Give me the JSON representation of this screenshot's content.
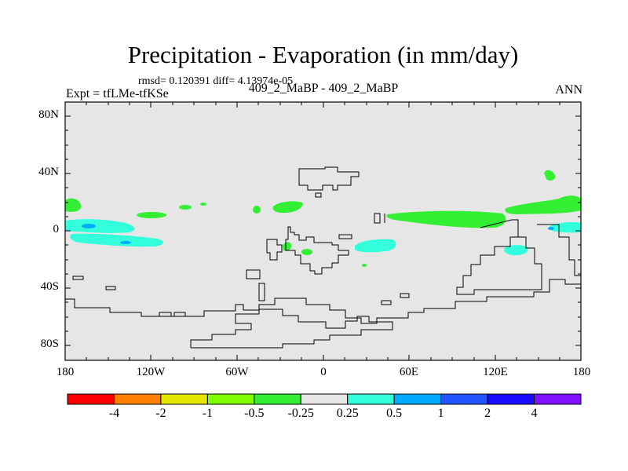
{
  "title": "Precipitation - Evaporation (in mm/day)",
  "subtitle": "rmsd= 0.120391 diff= 4.13974e-05",
  "left_label": "Expt = tfLMe-tfKSe",
  "center_label": "409_2_MaBP - 409_2_MaBP",
  "right_label": "ANN",
  "lat_ticks": [
    "80N",
    "40N",
    "0",
    "40S",
    "80S"
  ],
  "lon_ticks": [
    "180",
    "120W",
    "60W",
    "0",
    "60E",
    "120E",
    "180"
  ],
  "colorbar": {
    "labels": [
      "-4",
      "-2",
      "-1",
      "-0.5",
      "-0.25",
      "0.25",
      "0.5",
      "1",
      "2",
      "4"
    ],
    "colors": [
      "#ff0000",
      "#ff8000",
      "#e6e600",
      "#80ff00",
      "#33ee33",
      "#e6e6e6",
      "#33ffdd",
      "#00aaff",
      "#2255ff",
      "#1a0aff",
      "#8010ff"
    ]
  },
  "colors": {
    "background": "#e6e6e6",
    "coast": "#000000"
  }
}
